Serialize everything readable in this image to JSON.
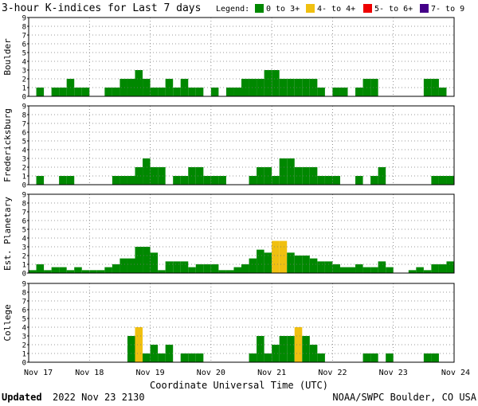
{
  "title": "3-hour K-indices for Last 7 days",
  "legend": {
    "label": "Legend:",
    "items": [
      {
        "label": "0 to 3+",
        "color": "#008800"
      },
      {
        "label": "4- to 4+",
        "color": "#f0c010"
      },
      {
        "label": "5- to 6+",
        "color": "#ee0000"
      },
      {
        "label": "7- to 9",
        "color": "#440088"
      }
    ]
  },
  "footer": {
    "updated_label": "Updated",
    "updated_time": "2022 Nov 23 2130",
    "credit": "NOAA/SWPC Boulder, CO USA"
  },
  "chart_data": {
    "type": "bar",
    "xlabel": "Coordinate Universal Time (UTC)",
    "x_ticks": [
      "Nov 17",
      "Nov 18",
      "Nov 19",
      "Nov 20",
      "Nov 21",
      "Nov 22",
      "Nov 23",
      "Nov 24"
    ],
    "ylim": [
      0,
      9
    ],
    "y_ticks": [
      0,
      1,
      2,
      3,
      4,
      5,
      6,
      7,
      8,
      9
    ],
    "grid": true,
    "interval": "3-hour",
    "panels": [
      {
        "name": "Boulder",
        "values": [
          0,
          1,
          0,
          1,
          1,
          2,
          1,
          1,
          0,
          0,
          1,
          1,
          2,
          2,
          3,
          2,
          1,
          1,
          2,
          1,
          2,
          1,
          1,
          0,
          1,
          0,
          1,
          1,
          2,
          2,
          2,
          3,
          3,
          2,
          2,
          2,
          2,
          2,
          1,
          0,
          1,
          1,
          0,
          1,
          2,
          2,
          0,
          0,
          0,
          0,
          0,
          0,
          2,
          2,
          1,
          0
        ]
      },
      {
        "name": "Fredericksburg",
        "values": [
          0,
          1,
          0,
          0,
          1,
          1,
          0,
          0,
          0,
          0,
          0,
          1,
          1,
          1,
          2,
          3,
          2,
          2,
          0,
          1,
          1,
          2,
          2,
          1,
          1,
          1,
          0,
          0,
          0,
          1,
          2,
          2,
          1,
          3,
          3,
          2,
          2,
          2,
          1,
          1,
          1,
          0,
          0,
          1,
          0,
          1,
          2,
          0,
          0,
          0,
          0,
          0,
          0,
          1,
          1,
          1
        ]
      },
      {
        "name": "Est. Planetary",
        "values": [
          0.33,
          1,
          0.33,
          0.67,
          0.67,
          0.33,
          0.67,
          0.33,
          0.33,
          0.33,
          0.67,
          1,
          1.67,
          1.67,
          3,
          3,
          2.33,
          0.33,
          1.33,
          1.33,
          1.33,
          0.67,
          1,
          1,
          1,
          0.33,
          0.33,
          0.67,
          1,
          1.67,
          2.67,
          2.33,
          3.67,
          3.67,
          2.33,
          2,
          2,
          1.67,
          1.33,
          1.33,
          1,
          0.67,
          0.67,
          1,
          0.67,
          0.67,
          1.33,
          0.67,
          0,
          0,
          0.33,
          0.67,
          0.33,
          1,
          1,
          1.33
        ]
      },
      {
        "name": "College",
        "values": [
          0,
          0,
          0,
          0,
          0,
          0,
          0,
          0,
          0,
          0,
          0,
          0,
          0,
          3,
          4,
          1,
          2,
          1,
          2,
          0,
          1,
          1,
          1,
          0,
          0,
          0,
          0,
          0,
          0,
          1,
          3,
          1,
          2,
          3,
          3,
          4,
          3,
          2,
          1,
          0,
          0,
          0,
          0,
          0,
          1,
          1,
          0,
          1,
          0,
          0,
          0,
          0,
          1,
          1,
          0,
          0
        ]
      }
    ]
  }
}
